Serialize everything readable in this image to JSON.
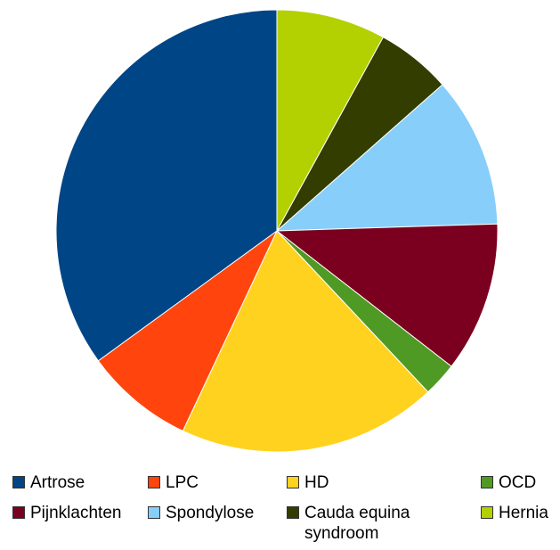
{
  "chart_data": {
    "type": "pie",
    "title": "",
    "slices": [
      {
        "label": "Hernia",
        "value": 8.0,
        "color": "#b3d000"
      },
      {
        "label": "Cauda equina\nsyndroom",
        "value": 5.5,
        "color": "#333d00"
      },
      {
        "label": "Spondylose",
        "value": 11.0,
        "color": "#87cefa"
      },
      {
        "label": "Pijnklachten",
        "value": 11.0,
        "color": "#7b0020"
      },
      {
        "label": "OCD",
        "value": 2.5,
        "color": "#4f9a24"
      },
      {
        "label": "HD",
        "value": 19.0,
        "color": "#ffd21f"
      },
      {
        "label": "LPC",
        "value": 8.0,
        "color": "#ff450d"
      },
      {
        "label": "Artrose",
        "value": 35.0,
        "color": "#004586"
      }
    ],
    "legend": [
      {
        "label": "Artrose",
        "color": "#004586"
      },
      {
        "label": "LPC",
        "color": "#ff450d"
      },
      {
        "label": "HD",
        "color": "#ffd21f"
      },
      {
        "label": "OCD",
        "color": "#4f9a24"
      },
      {
        "label": "Pijnklachten",
        "color": "#7b0020"
      },
      {
        "label": "Spondylose",
        "color": "#87cefa"
      },
      {
        "label": "Cauda equina\nsyndroom",
        "color": "#333d00"
      },
      {
        "label": "Hernia",
        "color": "#b3d000"
      }
    ],
    "legend_placement": "bottom"
  }
}
